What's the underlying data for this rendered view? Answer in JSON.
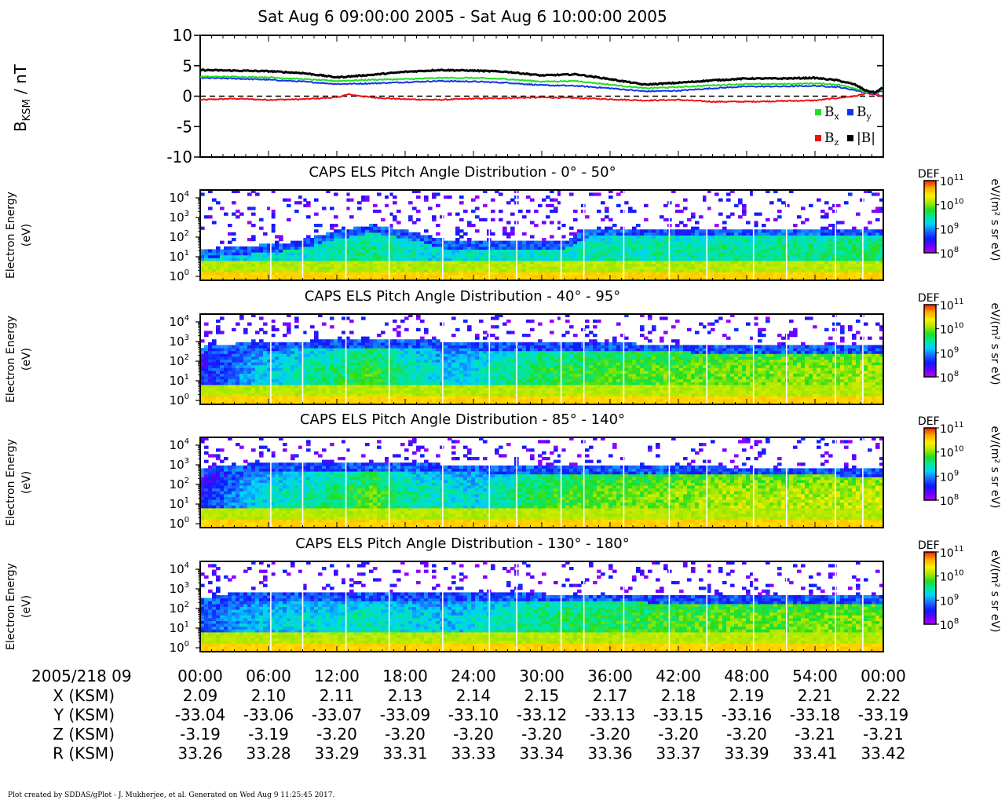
{
  "title": "Sat Aug 6 09:00:00 2005 - Sat Aug 6 10:00:00 2005",
  "footer": "Plot created by SDDAS/gPlot - J. Mukherjee, et al.  Generated on Wed Aug 9 11:25:45 2017.",
  "colors": {
    "bx": "#22dd22",
    "by": "#1133ee",
    "bz": "#ee1111",
    "bmag": "#000000",
    "spectro_white": "#ffffff"
  },
  "colorbar_stops": [
    "#b400ff",
    "#6a00ff",
    "#0b1bff",
    "#1a66ff",
    "#00d0ff",
    "#00e8a0",
    "#22dd22",
    "#a8e800",
    "#ffee00",
    "#ffaa00",
    "#ff2200"
  ],
  "chart_data": [
    {
      "type": "line",
      "ylabel_main": "B",
      "ylabel_sub": "KSM",
      "ylabel_unit": " / nT",
      "ylim": [
        -10,
        10
      ],
      "yticks": [
        "10",
        "5",
        "0",
        "-5",
        "-10"
      ],
      "ytick_values": [
        10,
        5,
        0,
        -5,
        -10
      ],
      "xlim_minutes": [
        0,
        60
      ],
      "zero_line": "dashed",
      "legend_placement": "bottom-right",
      "series": [
        {
          "name": "B",
          "sub": "x",
          "key": "bx",
          "x": [
            0,
            3,
            6,
            9,
            12,
            15,
            18,
            21,
            24,
            27,
            30,
            33,
            36,
            39,
            42,
            45,
            48,
            51,
            54,
            56,
            57.5,
            58.5,
            59.3,
            60
          ],
          "y": [
            3.2,
            3.2,
            3.1,
            2.8,
            2.5,
            2.7,
            2.8,
            3.0,
            3.0,
            2.8,
            2.4,
            2.5,
            1.9,
            1.3,
            1.5,
            1.8,
            2.0,
            2.0,
            2.1,
            1.9,
            1.3,
            0.7,
            0.5,
            1.1
          ]
        },
        {
          "name": "B",
          "sub": "y",
          "key": "by",
          "x": [
            0,
            3,
            6,
            9,
            12,
            15,
            18,
            21,
            24,
            27,
            30,
            33,
            36,
            39,
            42,
            45,
            48,
            51,
            54,
            56,
            57.5,
            58.5,
            59.3,
            60
          ],
          "y": [
            3.0,
            2.9,
            2.7,
            2.4,
            2.0,
            2.1,
            2.3,
            2.5,
            2.4,
            2.2,
            1.8,
            1.7,
            1.3,
            0.8,
            0.9,
            1.3,
            1.6,
            1.6,
            1.7,
            1.5,
            1.0,
            0.6,
            0.4,
            1.0
          ]
        },
        {
          "name": "B",
          "sub": "z",
          "key": "bz",
          "x": [
            0,
            3,
            6,
            9,
            12,
            13,
            15,
            18,
            21,
            24,
            27,
            30,
            33,
            36,
            39,
            42,
            45,
            48,
            51,
            54,
            56,
            57.5,
            58.5,
            59.3,
            60
          ],
          "y": [
            -0.6,
            -0.4,
            -0.6,
            -0.5,
            -0.2,
            0.3,
            -0.2,
            -0.5,
            -0.6,
            -0.4,
            -0.3,
            -0.2,
            -0.3,
            -0.5,
            -0.7,
            -0.6,
            -0.9,
            -0.9,
            -0.8,
            -0.7,
            -0.3,
            0.0,
            0.5,
            0.2,
            0.0
          ]
        },
        {
          "name": "|B|",
          "sub": "",
          "key": "bmag",
          "x": [
            0,
            3,
            6,
            9,
            12,
            15,
            18,
            21,
            24,
            27,
            30,
            33,
            36,
            39,
            42,
            45,
            48,
            51,
            54,
            56,
            57.5,
            58.5,
            59.3,
            60
          ],
          "y": [
            4.3,
            4.2,
            4.1,
            3.8,
            3.1,
            3.5,
            4.0,
            4.3,
            4.2,
            4.0,
            3.4,
            3.6,
            2.8,
            1.9,
            2.2,
            2.6,
            2.9,
            2.9,
            3.0,
            2.6,
            1.9,
            0.9,
            0.6,
            1.5
          ]
        }
      ]
    },
    {
      "type": "heatmap",
      "title": "CAPS ELS Pitch Angle Distribution - 0° - 50°",
      "ylabel": [
        "Electron Energy",
        "(eV)"
      ],
      "yticks_exp": [
        "4",
        "3",
        "2",
        "1",
        "0"
      ],
      "ylim_log10": [
        -0.2,
        4.4
      ],
      "colorbar_label": "DEF",
      "colorbar_unit": "eV/(m² s sr eV)",
      "colorbar_ticks_exp": [
        "11",
        "10",
        "9",
        "8"
      ],
      "colorbar_log10": [
        8,
        11
      ],
      "cutoff_log10": [
        {
          "t": 0,
          "v": 1.2
        },
        {
          "t": 8,
          "v": 1.6
        },
        {
          "t": 12,
          "v": 2.2
        },
        {
          "t": 15,
          "v": 2.5
        },
        {
          "t": 18,
          "v": 2.2
        },
        {
          "t": 22,
          "v": 1.6
        },
        {
          "t": 27,
          "v": 1.7
        },
        {
          "t": 32,
          "v": 1.7
        },
        {
          "t": 34,
          "v": 2.3
        },
        {
          "t": 60,
          "v": 2.3
        }
      ],
      "peak_log10": [
        {
          "t": 0,
          "v": 9.2
        },
        {
          "t": 10,
          "v": 9.4
        },
        {
          "t": 15,
          "v": 9.6
        },
        {
          "t": 20,
          "v": 9.3
        },
        {
          "t": 30,
          "v": 9.4
        },
        {
          "t": 60,
          "v": 9.6
        }
      ]
    },
    {
      "type": "heatmap",
      "title": "CAPS ELS Pitch Angle Distribution - 40° - 95°",
      "ylabel": [
        "Electron Energy",
        "(eV)"
      ],
      "yticks_exp": [
        "4",
        "3",
        "2",
        "1",
        "0"
      ],
      "ylim_log10": [
        -0.2,
        4.4
      ],
      "colorbar_label": "DEF",
      "colorbar_unit": "eV/(m² s sr eV)",
      "colorbar_ticks_exp": [
        "11",
        "10",
        "9",
        "8"
      ],
      "colorbar_log10": [
        8,
        11
      ],
      "cutoff_log10": [
        {
          "t": 0,
          "v": 2.6
        },
        {
          "t": 4,
          "v": 2.8
        },
        {
          "t": 10,
          "v": 2.9
        },
        {
          "t": 20,
          "v": 2.9
        },
        {
          "t": 30,
          "v": 2.8
        },
        {
          "t": 60,
          "v": 2.6
        }
      ],
      "peak_log10": [
        {
          "t": 0,
          "v": 8.6
        },
        {
          "t": 5,
          "v": 9.2
        },
        {
          "t": 10,
          "v": 9.5
        },
        {
          "t": 15,
          "v": 9.8
        },
        {
          "t": 18,
          "v": 9.5
        },
        {
          "t": 22,
          "v": 9.2
        },
        {
          "t": 30,
          "v": 9.7
        },
        {
          "t": 40,
          "v": 9.9
        },
        {
          "t": 60,
          "v": 10.1
        }
      ]
    },
    {
      "type": "heatmap",
      "title": "CAPS ELS Pitch Angle Distribution - 85° - 140°",
      "ylabel": [
        "Electron Energy",
        "(eV)"
      ],
      "yticks_exp": [
        "4",
        "3",
        "2",
        "1",
        "0"
      ],
      "ylim_log10": [
        -0.2,
        4.4
      ],
      "colorbar_label": "DEF",
      "colorbar_unit": "eV/(m² s sr eV)",
      "colorbar_ticks_exp": [
        "11",
        "10",
        "9",
        "8"
      ],
      "colorbar_log10": [
        8,
        11
      ],
      "cutoff_log10": [
        {
          "t": 0,
          "v": 2.7
        },
        {
          "t": 4,
          "v": 2.9
        },
        {
          "t": 20,
          "v": 2.9
        },
        {
          "t": 30,
          "v": 2.8
        },
        {
          "t": 60,
          "v": 2.7
        }
      ],
      "peak_log10": [
        {
          "t": 0,
          "v": 8.6
        },
        {
          "t": 5,
          "v": 9.3
        },
        {
          "t": 12,
          "v": 9.6
        },
        {
          "t": 15,
          "v": 9.9
        },
        {
          "t": 18,
          "v": 9.5
        },
        {
          "t": 24,
          "v": 9.3
        },
        {
          "t": 30,
          "v": 9.8
        },
        {
          "t": 45,
          "v": 10.1
        },
        {
          "t": 60,
          "v": 10.2
        }
      ]
    },
    {
      "type": "heatmap",
      "title": "CAPS ELS Pitch Angle Distribution - 130° - 180°",
      "ylabel": [
        "Electron Energy",
        "(eV)"
      ],
      "yticks_exp": [
        "4",
        "3",
        "2",
        "1",
        "0"
      ],
      "ylim_log10": [
        -0.2,
        4.4
      ],
      "colorbar_label": "DEF",
      "colorbar_unit": "eV/(m² s sr eV)",
      "colorbar_ticks_exp": [
        "11",
        "10",
        "9",
        "8"
      ],
      "colorbar_log10": [
        8,
        11
      ],
      "cutoff_log10": [
        {
          "t": 0,
          "v": 2.4
        },
        {
          "t": 4,
          "v": 2.7
        },
        {
          "t": 20,
          "v": 2.7
        },
        {
          "t": 30,
          "v": 2.6
        },
        {
          "t": 60,
          "v": 2.5
        }
      ],
      "peak_log10": [
        {
          "t": 0,
          "v": 8.8
        },
        {
          "t": 5,
          "v": 9.2
        },
        {
          "t": 15,
          "v": 9.4
        },
        {
          "t": 22,
          "v": 9.2
        },
        {
          "t": 30,
          "v": 9.6
        },
        {
          "t": 45,
          "v": 9.9
        },
        {
          "t": 60,
          "v": 10.0
        }
      ]
    }
  ],
  "xaxis": {
    "date_label": "2005/218 09",
    "ticks_minutes": [
      0,
      6,
      12,
      18,
      24,
      30,
      36,
      42,
      48,
      54,
      60
    ],
    "tick_labels": [
      "00:00",
      "06:00",
      "12:00",
      "18:00",
      "24:00",
      "30:00",
      "36:00",
      "42:00",
      "48:00",
      "54:00",
      "00:00"
    ],
    "ephemeris": [
      {
        "label": "X (KSM)",
        "values": [
          "2.09",
          "2.10",
          "2.11",
          "2.13",
          "2.14",
          "2.15",
          "2.17",
          "2.18",
          "2.19",
          "2.21",
          "2.22"
        ]
      },
      {
        "label": "Y (KSM)",
        "values": [
          "-33.04",
          "-33.06",
          "-33.07",
          "-33.09",
          "-33.10",
          "-33.12",
          "-33.13",
          "-33.15",
          "-33.16",
          "-33.18",
          "-33.19"
        ]
      },
      {
        "label": "Z (KSM)",
        "values": [
          "-3.19",
          "-3.19",
          "-3.20",
          "-3.20",
          "-3.20",
          "-3.20",
          "-3.20",
          "-3.20",
          "-3.20",
          "-3.21",
          "-3.21"
        ]
      },
      {
        "label": "R (KSM)",
        "values": [
          "33.26",
          "33.28",
          "33.29",
          "33.31",
          "33.33",
          "33.34",
          "33.36",
          "33.37",
          "33.39",
          "33.41",
          "33.42"
        ]
      }
    ]
  }
}
